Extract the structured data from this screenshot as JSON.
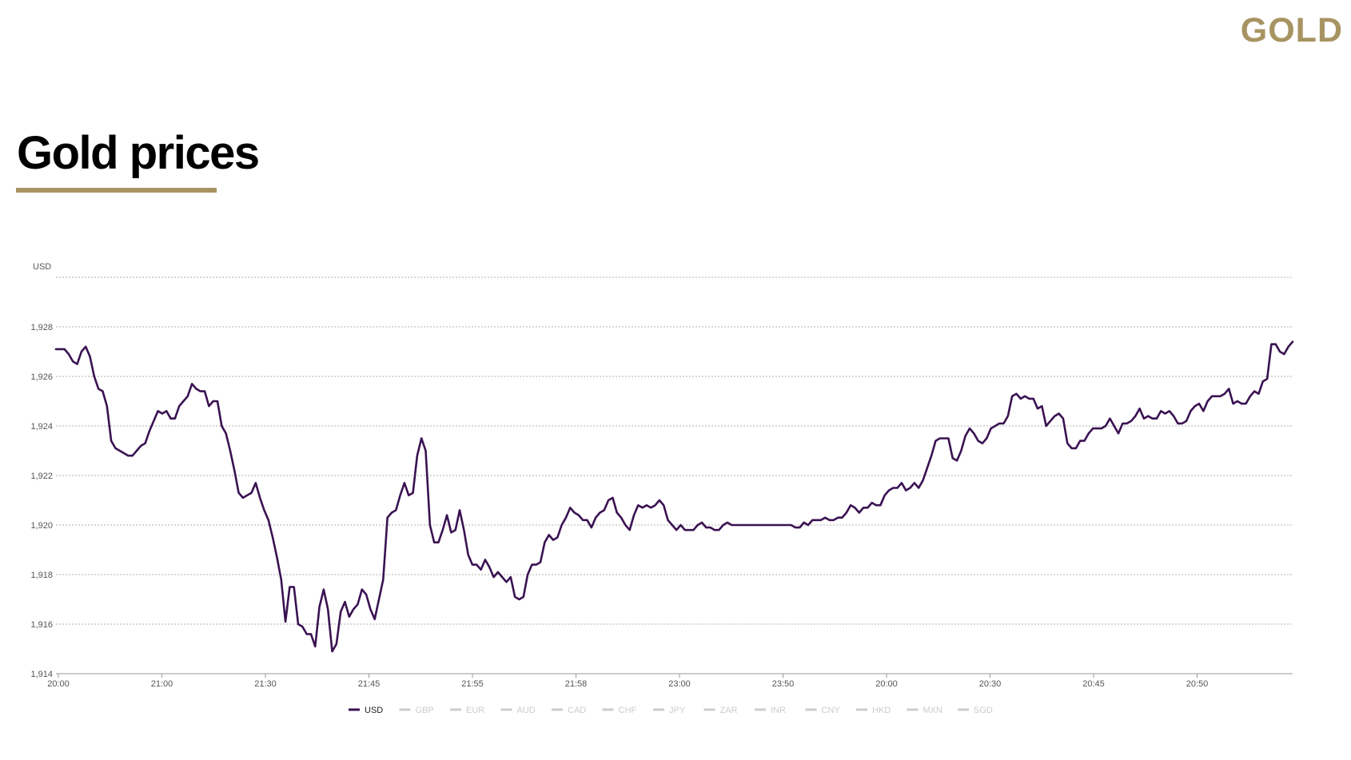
{
  "brand": {
    "logo_text": "GOLD"
  },
  "page": {
    "title": "Gold prices"
  },
  "colors": {
    "accent": "#a89462",
    "series": "#3a1252",
    "inactive": "#cccccc",
    "grid": "#b0b0b0"
  },
  "chart_data": {
    "type": "line",
    "title": "",
    "xlabel": "",
    "ylabel": "USD",
    "ylim": [
      1914,
      1930
    ],
    "y_ticks": [
      1914,
      1916,
      1918,
      1920,
      1922,
      1924,
      1926,
      1928
    ],
    "y_tick_labels": [
      "1,914",
      "1,916",
      "1,918",
      "1,920",
      "1,922",
      "1,924",
      "1,926",
      "1,928"
    ],
    "grid": true,
    "legend_position": "bottom",
    "x_tick_labels": [
      "20:00",
      "21:00",
      "21:30",
      "21:45",
      "21:55",
      "21:58",
      "23:00",
      "23:50",
      "20:00",
      "20:30",
      "20:45",
      "20:50"
    ],
    "legend": [
      "USD",
      "GBP",
      "EUR",
      "AUD",
      "CAD",
      "CHF",
      "JPY",
      "ZAR",
      "INR",
      "CNY",
      "HKD",
      "MXN",
      "SGD"
    ],
    "active_series": "USD",
    "series": [
      {
        "name": "USD",
        "values": [
          1927.1,
          1927.1,
          1927.1,
          1926.9,
          1926.6,
          1926.5,
          1927.0,
          1927.2,
          1926.8,
          1926.0,
          1925.5,
          1925.4,
          1924.8,
          1923.4,
          1923.1,
          1923.0,
          1922.9,
          1922.8,
          1922.8,
          1923.0,
          1923.2,
          1923.3,
          1923.8,
          1924.2,
          1924.6,
          1924.5,
          1924.6,
          1924.3,
          1924.3,
          1924.8,
          1925.0,
          1925.2,
          1925.7,
          1925.5,
          1925.4,
          1925.4,
          1924.8,
          1925.0,
          1925.0,
          1924.0,
          1923.7,
          1923.0,
          1922.2,
          1921.3,
          1921.1,
          1921.2,
          1921.3,
          1921.7,
          1921.1,
          1920.6,
          1920.2,
          1919.5,
          1918.7,
          1917.8,
          1916.1,
          1917.5,
          1917.5,
          1916.0,
          1915.9,
          1915.6,
          1915.6,
          1915.1,
          1916.7,
          1917.4,
          1916.6,
          1914.9,
          1915.2,
          1916.5,
          1916.9,
          1916.3,
          1916.6,
          1916.8,
          1917.4,
          1917.2,
          1916.6,
          1916.2,
          1917.0,
          1917.8,
          1920.3,
          1920.5,
          1920.6,
          1921.2,
          1921.7,
          1921.2,
          1921.3,
          1922.8,
          1923.5,
          1923.0,
          1920.0,
          1919.3,
          1919.3,
          1919.8,
          1920.4,
          1919.7,
          1919.8,
          1920.6,
          1919.8,
          1918.8,
          1918.4,
          1918.4,
          1918.2,
          1918.6,
          1918.3,
          1917.9,
          1918.1,
          1917.9,
          1917.7,
          1917.9,
          1917.1,
          1917.0,
          1917.1,
          1918.0,
          1918.4,
          1918.4,
          1918.5,
          1919.3,
          1919.6,
          1919.4,
          1919.5,
          1920.0,
          1920.3,
          1920.7,
          1920.5,
          1920.4,
          1920.2,
          1920.2,
          1919.9,
          1920.3,
          1920.5,
          1920.6,
          1921.0,
          1921.1,
          1920.5,
          1920.3,
          1920.0,
          1919.8,
          1920.4,
          1920.8,
          1920.7,
          1920.8,
          1920.7,
          1920.8,
          1921.0,
          1920.8,
          1920.2,
          1920.0,
          1919.8,
          1920.0,
          1919.8,
          1919.8,
          1919.8,
          1920.0,
          1920.1,
          1919.9,
          1919.9,
          1919.8,
          1919.8,
          1920.0,
          1920.1,
          1920.0,
          1920.0,
          1920.0,
          1920.0,
          1920.0,
          1920.0,
          1920.0,
          1920.0,
          1920.0,
          1920.0,
          1920.0,
          1920.0,
          1920.0,
          1920.0,
          1920.0,
          1919.9,
          1919.9,
          1920.1,
          1920.0,
          1920.2,
          1920.2,
          1920.2,
          1920.3,
          1920.2,
          1920.2,
          1920.3,
          1920.3,
          1920.5,
          1920.8,
          1920.7,
          1920.5,
          1920.7,
          1920.7,
          1920.9,
          1920.8,
          1920.8,
          1921.2,
          1921.4,
          1921.5,
          1921.5,
          1921.7,
          1921.4,
          1921.5,
          1921.7,
          1921.5,
          1921.8,
          1922.3,
          1922.8,
          1923.4,
          1923.5,
          1923.5,
          1923.5,
          1922.7,
          1922.6,
          1923.0,
          1923.6,
          1923.9,
          1923.7,
          1923.4,
          1923.3,
          1923.5,
          1923.9,
          1924.0,
          1924.1,
          1924.1,
          1924.4,
          1925.2,
          1925.3,
          1925.1,
          1925.2,
          1925.1,
          1925.1,
          1924.7,
          1924.8,
          1924.0,
          1924.2,
          1924.4,
          1924.5,
          1924.3,
          1923.3,
          1923.1,
          1923.1,
          1923.4,
          1923.4,
          1923.7,
          1923.9,
          1923.9,
          1923.9,
          1924.0,
          1924.3,
          1924.0,
          1923.7,
          1924.1,
          1924.1,
          1924.2,
          1924.4,
          1924.7,
          1924.3,
          1924.4,
          1924.3,
          1924.3,
          1924.6,
          1924.5,
          1924.6,
          1924.4,
          1924.1,
          1924.1,
          1924.2,
          1924.6,
          1924.8,
          1924.9,
          1924.6,
          1925.0,
          1925.2,
          1925.2,
          1925.2,
          1925.3,
          1925.5,
          1924.9,
          1925.0,
          1924.9,
          1924.9,
          1925.2,
          1925.4,
          1925.3,
          1925.8,
          1925.9,
          1927.3,
          1927.3,
          1927.0,
          1926.9,
          1927.2,
          1927.4
        ]
      }
    ]
  }
}
